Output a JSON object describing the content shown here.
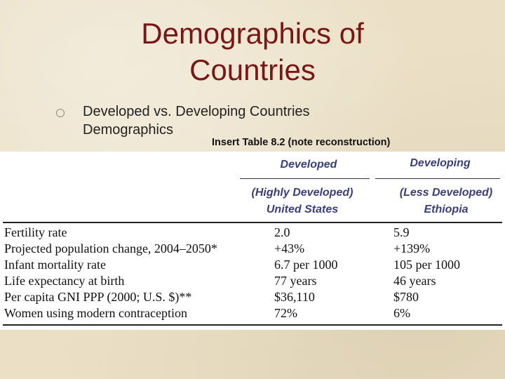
{
  "slide": {
    "title_line1": "Demographics of",
    "title_line2": "Countries",
    "bullet": "Developed vs. Developing Countries Demographics",
    "insert_note": "Insert Table 8.2 (note reconstruction)"
  },
  "table": {
    "header_developed": "Developed",
    "header_developing": "Developing",
    "sub_developed_line1": "(Highly Developed)",
    "sub_developed_line2": "United States",
    "sub_developing_line1": "(Less Developed)",
    "sub_developing_line2": "Ethiopia",
    "rows": [
      {
        "label": "Fertility rate",
        "developed": "2.0",
        "developing": "5.9"
      },
      {
        "label": "Projected population change, 2004–2050*",
        "developed": "+43%",
        "developing": "+139%"
      },
      {
        "label": "Infant mortality rate",
        "developed": "6.7 per 1000",
        "developing": "105 per 1000"
      },
      {
        "label": "Life expectancy at birth",
        "developed": "77 years",
        "developing": "46 years"
      },
      {
        "label": "Per capita GNI PPP (2000; U.S. $)**",
        "developed": "$36,110",
        "developing": "$780"
      },
      {
        "label": "Women using modern contraception",
        "developed": "72%",
        "developing": "6%"
      }
    ]
  }
}
